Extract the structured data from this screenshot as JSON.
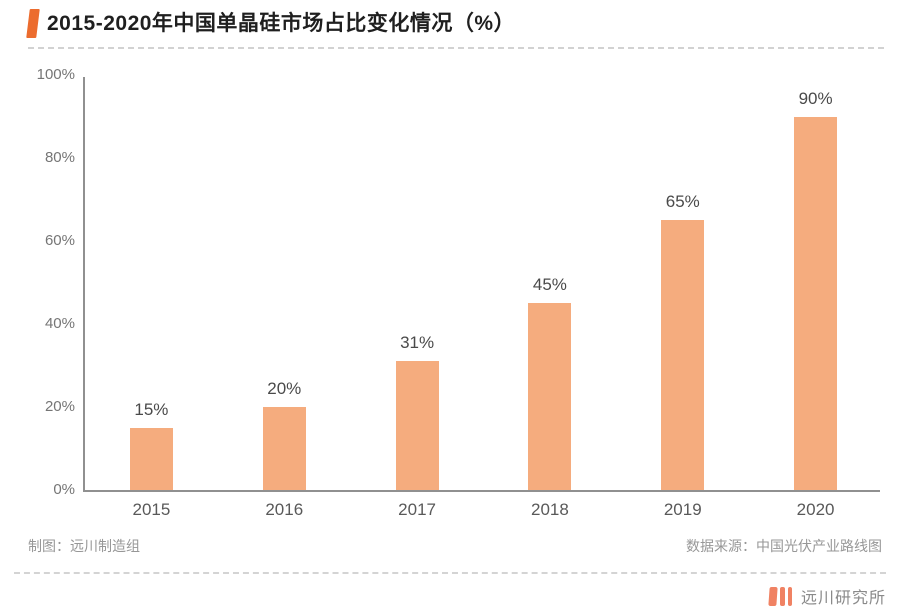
{
  "header": {
    "title": "2015-2020年中国单晶硅市场占比变化情况（%）"
  },
  "chart_data": {
    "type": "bar",
    "title": "2015-2020年中国单晶硅市场占比变化情况（%）",
    "categories": [
      "2015",
      "2016",
      "2017",
      "2018",
      "2019",
      "2020"
    ],
    "values": [
      15,
      20,
      31,
      45,
      65,
      90
    ],
    "value_labels": [
      "15%",
      "20%",
      "31%",
      "45%",
      "65%",
      "90%"
    ],
    "xlabel": "",
    "ylabel": "",
    "ylim": [
      0,
      100
    ],
    "yticks": [
      0,
      20,
      40,
      60,
      80,
      100
    ],
    "ytick_labels": [
      "0%",
      "20%",
      "40%",
      "60%",
      "80%",
      "100%"
    ],
    "grid": false,
    "legend": false,
    "bar_color": "#f5ac7e"
  },
  "captions": {
    "credit": "制图：远川制造组",
    "source": "数据来源：中国光伏产业路线图"
  },
  "footer": {
    "brand": "远川研究所"
  },
  "colors": {
    "accent": "#ec6c2e",
    "bar": "#f5ac7e",
    "logo": "#f08263",
    "axis": "#909090",
    "title_text": "#1f1f1f",
    "label_text": "#4a4a4a",
    "tick_text": "#757575",
    "caption_text": "#979797"
  }
}
